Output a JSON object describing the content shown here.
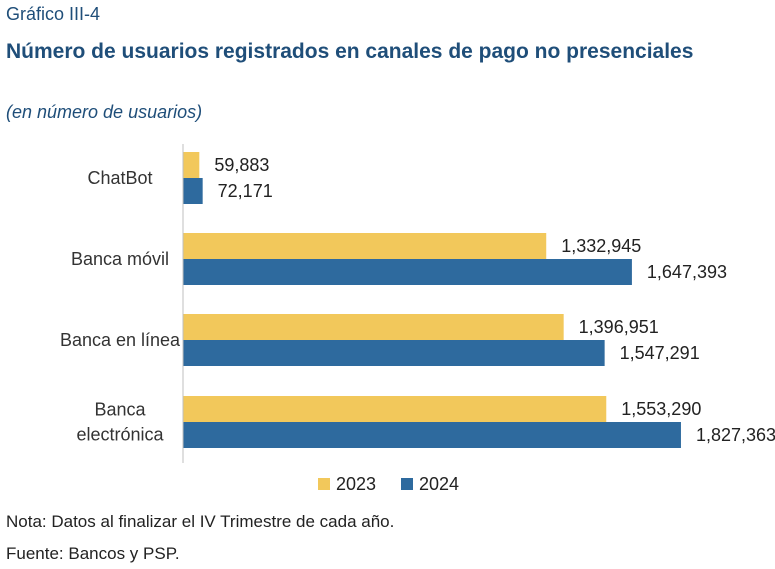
{
  "header": {
    "figure_number": "Gráfico III-4",
    "title": "Número de usuarios registrados en canales de pago no presenciales",
    "subtitle": "(en número de usuarios)"
  },
  "footer": {
    "note": "Nota: Datos al finalizar el IV Trimestre de cada año.",
    "source": "Fuente: Bancos y PSP."
  },
  "chart_data": {
    "type": "bar",
    "orientation": "horizontal",
    "categories": [
      "ChatBot",
      "Banca móvil",
      "Banca en línea",
      "Banca electrónica"
    ],
    "category_lines": [
      [
        "ChatBot"
      ],
      [
        "Banca móvil"
      ],
      [
        "Banca en línea"
      ],
      [
        "Banca",
        "electrónica"
      ]
    ],
    "series": [
      {
        "name": "2023",
        "color": "#f2c85b",
        "values": [
          59883,
          1332945,
          1396951,
          1553290
        ]
      },
      {
        "name": "2024",
        "color": "#2e6a9e",
        "values": [
          72171,
          1647393,
          1547291,
          1827363
        ]
      }
    ],
    "data_labels": [
      [
        "59,883",
        "1,332,945",
        "1,396,951",
        "1,553,290"
      ],
      [
        "72,171",
        "1,647,393",
        "1,547,291",
        "1,827,363"
      ]
    ],
    "xlim": [
      0,
      2000000
    ],
    "legend_position": "bottom",
    "grid": false
  }
}
